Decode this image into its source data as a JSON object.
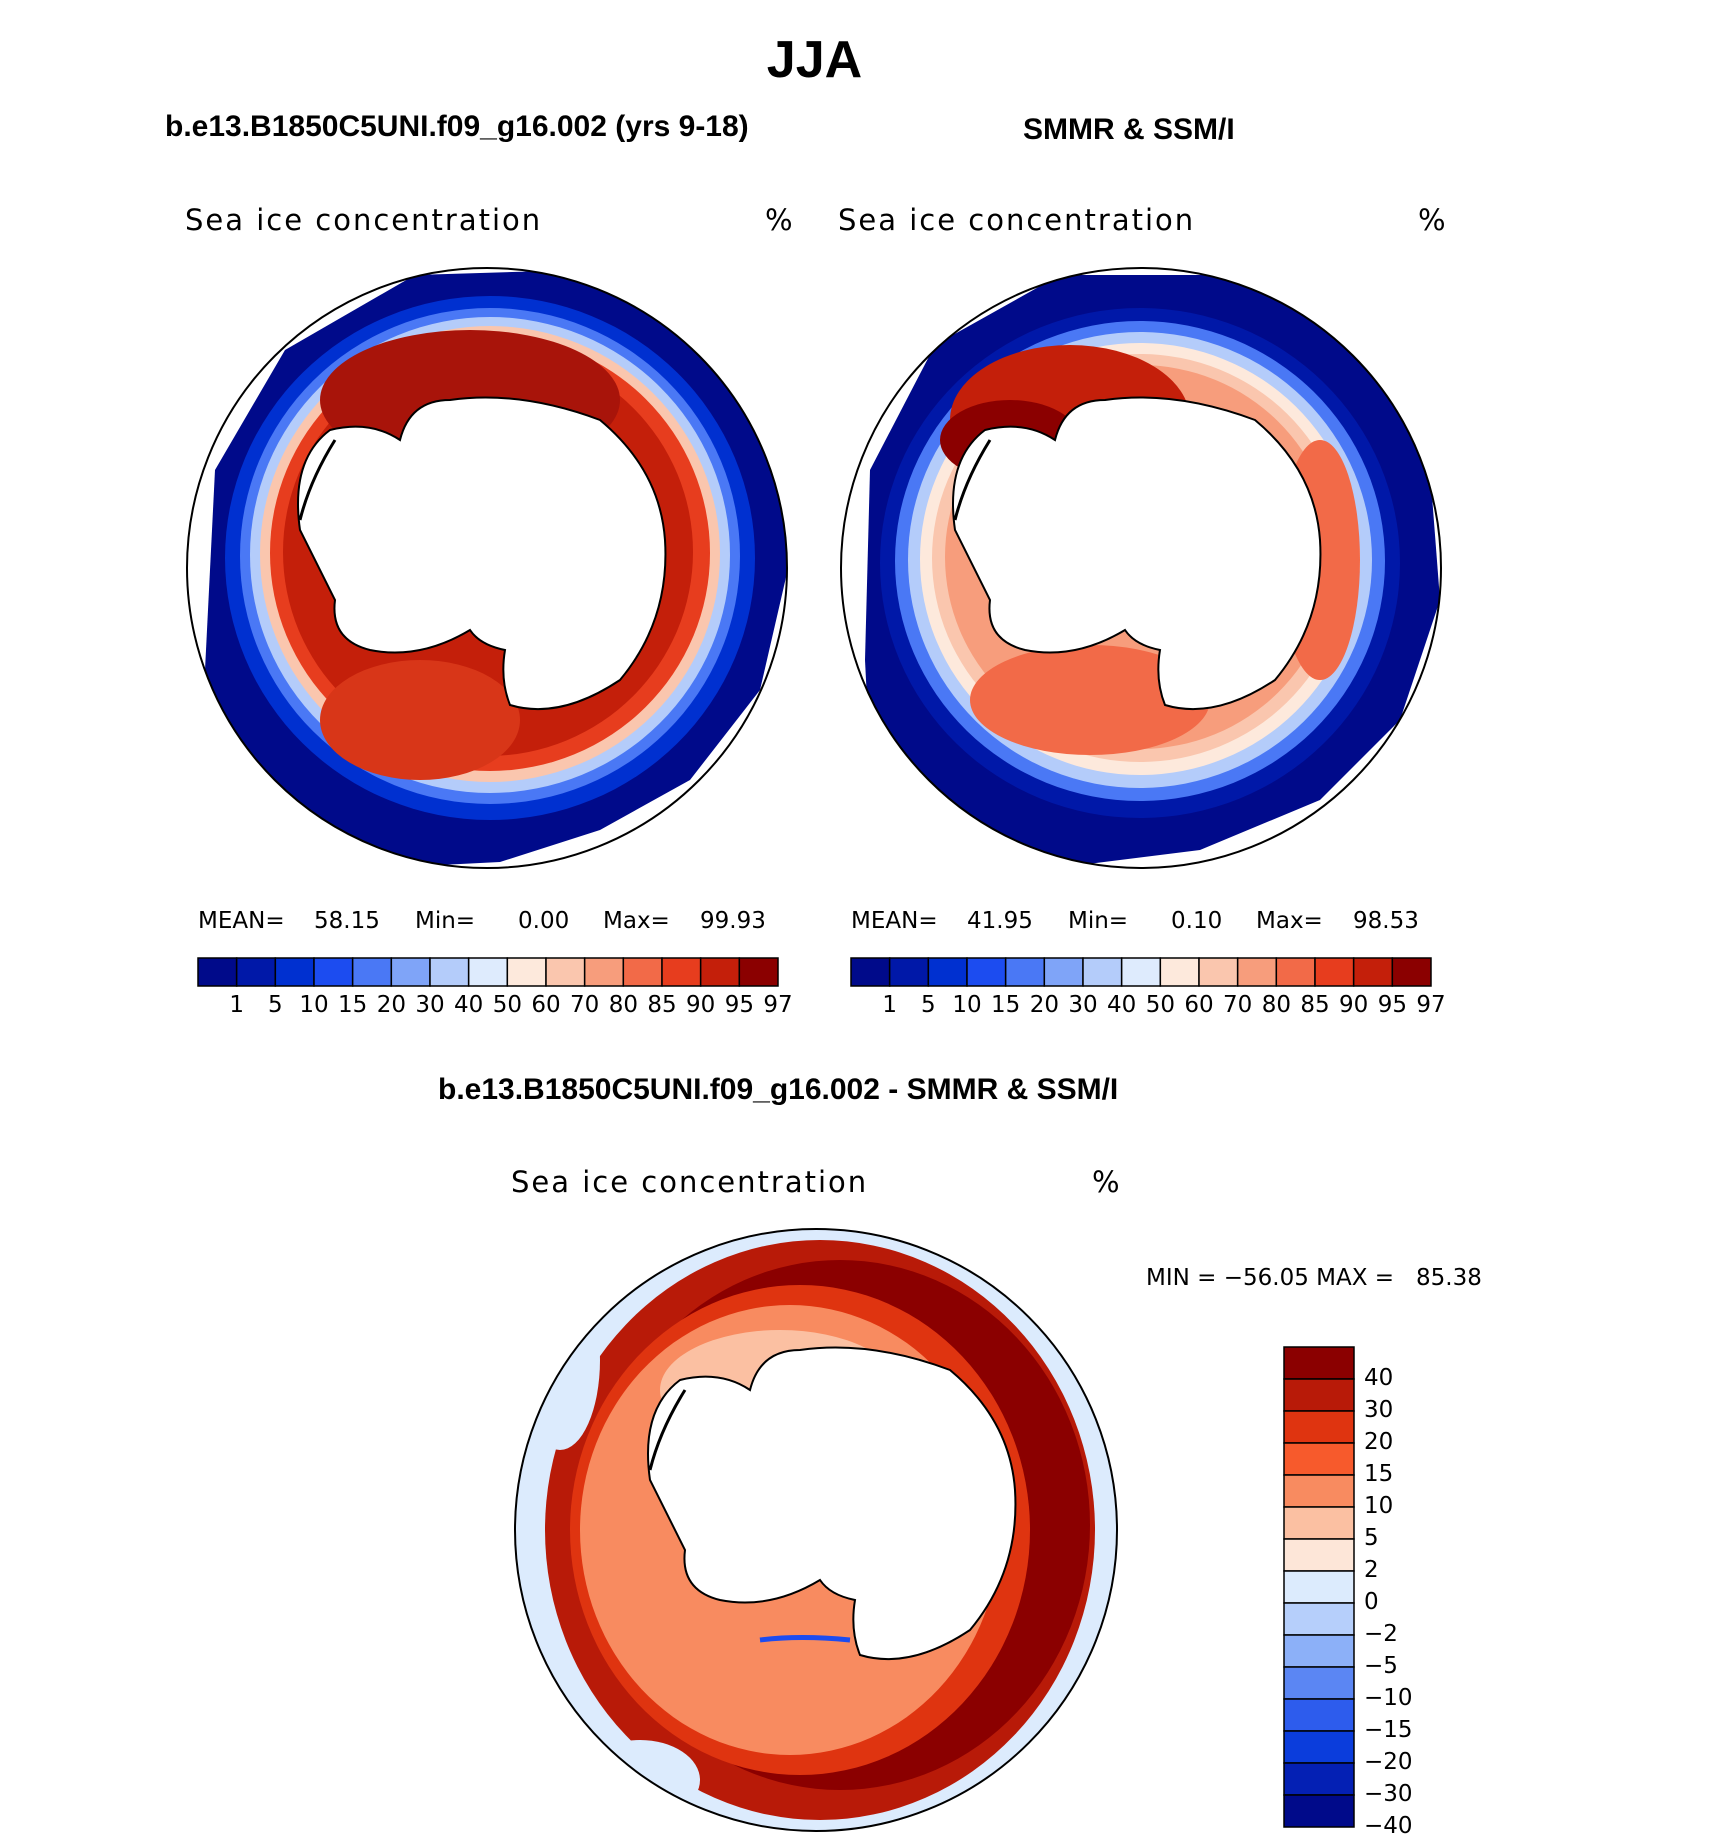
{
  "title": "JJA",
  "panels": {
    "model": {
      "subtitle": "b.e13.B1850C5UNI.f09_g16.002 (yrs 9-18)",
      "label": "Sea ice concentration",
      "units": "%",
      "mean_label": "MEAN=",
      "mean": "58.15",
      "min_label": "Min=",
      "min": "0.00",
      "max_label": "Max=",
      "max": "99.93"
    },
    "obs": {
      "subtitle": "SMMR & SSM/I",
      "label": "Sea ice concentration",
      "units": "%",
      "mean_label": "MEAN=",
      "mean": "41.95",
      "min_label": "Min=",
      "min": "0.10",
      "max_label": "Max=",
      "max": "98.53"
    },
    "diff": {
      "subtitle": "b.e13.B1850C5UNI.f09_g16.002 - SMMR & SSM/I",
      "label": "Sea ice concentration",
      "units": "%",
      "minmax_text": "MIN = −56.05 MAX =   85.38"
    }
  },
  "colorbars": {
    "concentration": {
      "levels": [
        "1",
        "5",
        "10",
        "15",
        "20",
        "30",
        "40",
        "50",
        "60",
        "70",
        "80",
        "85",
        "90",
        "95",
        "97"
      ],
      "colors": [
        "#000a8a",
        "#0018a8",
        "#0030d0",
        "#1c4cf0",
        "#4a78f5",
        "#7fa4f8",
        "#b4ccfa",
        "#deebfd",
        "#fde9dc",
        "#fac6ae",
        "#f79d7c",
        "#f26a48",
        "#e73d1e",
        "#c41f0a",
        "#8b0000"
      ]
    },
    "difference": {
      "levels": [
        "40",
        "30",
        "20",
        "15",
        "10",
        "5",
        "2",
        "0",
        "−2",
        "−5",
        "−10",
        "−15",
        "−20",
        "−30",
        "−40"
      ],
      "colors": [
        "#8b0000",
        "#b81a08",
        "#df3410",
        "#f75a2c",
        "#f88b60",
        "#fbc0a2",
        "#fde6d8",
        "#dcebfd",
        "#b6cffb",
        "#8cb0f8",
        "#5b86f3",
        "#2d5ced",
        "#0b3ddc",
        "#0420b4",
        "#000a8a"
      ]
    }
  }
}
